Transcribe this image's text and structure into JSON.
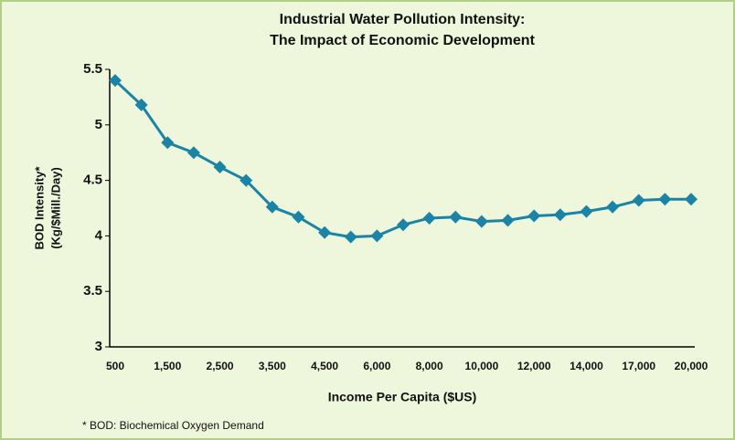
{
  "chart_data": {
    "type": "line",
    "title": [
      "Industrial Water Pollution Intensity:",
      "The Impact of Economic Development"
    ],
    "ylabel": [
      "BOD Intensity*",
      "(Kg/$Mill./Day)"
    ],
    "xlabel": "Income Per Capita ($US)",
    "footnote": "* BOD:  Biochemical Oxygen Demand",
    "categories": [
      "500",
      null,
      "1,500",
      null,
      "2,500",
      null,
      "3,500",
      null,
      "4,500",
      null,
      "6,000",
      null,
      "8,000",
      null,
      "10,000",
      null,
      "12,000",
      null,
      "14,000",
      null,
      "17,000",
      null,
      "20,000"
    ],
    "values": [
      5.4,
      5.18,
      4.84,
      4.75,
      4.62,
      4.5,
      4.26,
      4.17,
      4.03,
      3.99,
      4.0,
      4.1,
      4.16,
      4.17,
      4.13,
      4.14,
      4.18,
      4.19,
      4.22,
      4.26,
      4.32,
      4.33,
      4.33
    ],
    "color": "#1b84a6",
    "ylim": [
      3,
      5.5
    ],
    "yticks": [
      3,
      3.5,
      4,
      4.5,
      5,
      5.5
    ]
  }
}
